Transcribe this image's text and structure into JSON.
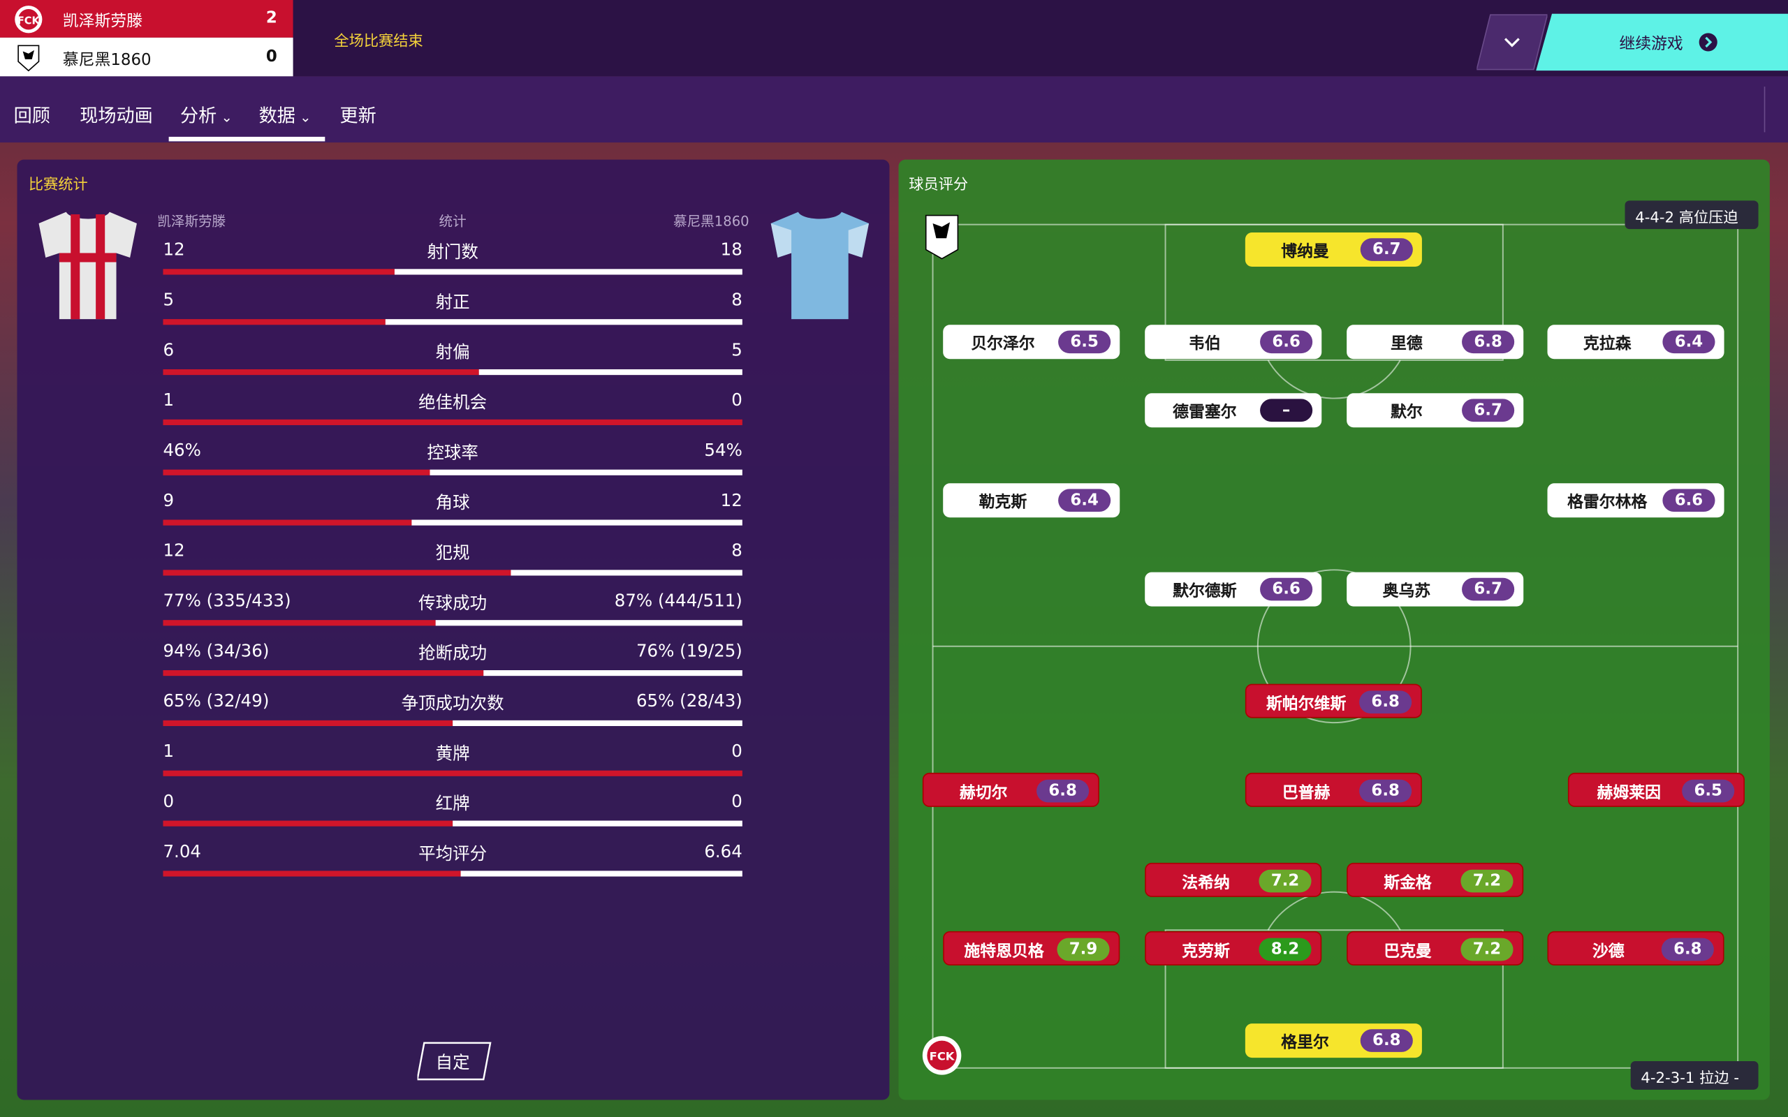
{
  "header": {
    "home_team": "凯泽斯劳滕",
    "home_score": 2,
    "away_team": "慕尼黑1860",
    "away_score": 0,
    "status": "全场比赛结束",
    "continue_button": "继续游戏"
  },
  "nav": {
    "tabs": [
      "回顾",
      "现场动画",
      "分析",
      "数据",
      "更新"
    ]
  },
  "stats": {
    "title": "比赛统计",
    "home_header": "凯泽斯劳滕",
    "stat_header": "统计",
    "away_header": "慕尼黑1860",
    "rows": [
      {
        "label": "射门数",
        "home": 12,
        "away": 18
      },
      {
        "label": "射正",
        "home": 5,
        "away": 8
      },
      {
        "label": "射偏",
        "home": 6,
        "away": 5
      },
      {
        "label": "绝佳机会",
        "home": 1,
        "away": 0
      },
      {
        "label": "控球率",
        "home": {
          "value": 46,
          "label": "46%"
        },
        "away": {
          "value": 54,
          "label": "54%"
        }
      },
      {
        "label": "角球",
        "home": 9,
        "away": 12
      },
      {
        "label": "犯规",
        "home": 12,
        "away": 8
      },
      {
        "label": "传球成功",
        "home": {
          "value": 77,
          "label": "77% (335/433)"
        },
        "away": {
          "value": 87,
          "label": "87% (444/511)"
        }
      },
      {
        "label": "抢断成功",
        "home": {
          "value": 94,
          "label": "94% (34/36)"
        },
        "away": {
          "value": 76,
          "label": "76% (19/25)"
        }
      },
      {
        "label": "争顶成功次数",
        "home": {
          "value": 65,
          "label": "65% (32/49)"
        },
        "away": {
          "value": 65,
          "label": "65% (28/43)"
        }
      },
      {
        "label": "黄牌",
        "home": 1,
        "away": 0
      },
      {
        "label": "红牌",
        "home": 0,
        "away": 0
      },
      {
        "label": "平均评分",
        "home": 7.04,
        "away": 6.64
      }
    ],
    "button": "自定"
  },
  "ratings": {
    "title": "球员评分",
    "away_formation": "4-4-2 高位压迫",
    "home_formation": "4-2-3-1 拉边 -",
    "away_players": [
      {
        "name": "博纳曼",
        "rating": 6.7
      },
      {
        "name": "贝尔泽尔",
        "rating": 6.5
      },
      {
        "name": "韦伯",
        "rating": 6.6
      },
      {
        "name": "里德",
        "rating": 6.8
      },
      {
        "name": "克拉森",
        "rating": 6.4
      },
      {
        "name": "德雷塞尔",
        "rating": "–"
      },
      {
        "name": "默尔",
        "rating": 6.7
      },
      {
        "name": "勒克斯",
        "rating": 6.4
      },
      {
        "name": "格雷尔林格",
        "rating": 6.6
      },
      {
        "name": "默尔德斯",
        "rating": 6.6
      },
      {
        "name": "奥乌苏",
        "rating": 6.7
      }
    ],
    "home_players": [
      {
        "name": "斯帕尔维斯",
        "rating": 6.8
      },
      {
        "name": "赫切尔",
        "rating": 6.8
      },
      {
        "name": "巴普赫",
        "rating": 6.8
      },
      {
        "name": "赫姆莱因",
        "rating": 6.5
      },
      {
        "name": "法希纳",
        "rating": 7.2
      },
      {
        "name": "斯金格",
        "rating": 7.2
      },
      {
        "name": "施特恩贝格",
        "rating": 7.9
      },
      {
        "name": "克劳斯",
        "rating": 8.2
      },
      {
        "name": "巴克曼",
        "rating": 7.2
      },
      {
        "name": "沙德",
        "rating": 6.8
      },
      {
        "name": "格里尔",
        "rating": 6.8
      }
    ]
  }
}
